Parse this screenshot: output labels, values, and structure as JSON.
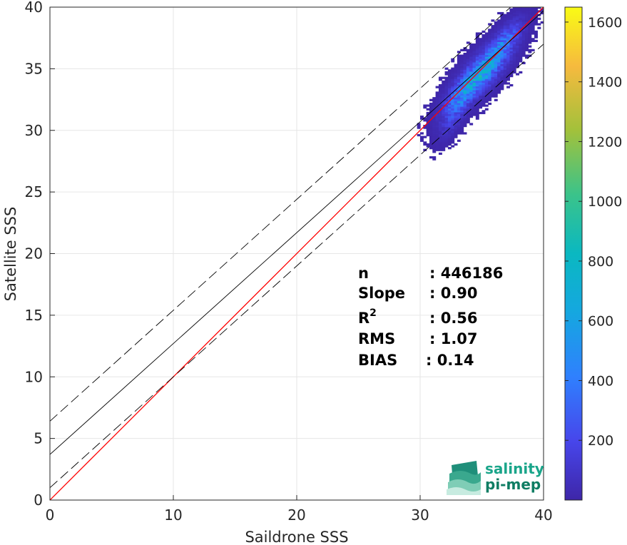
{
  "chart_data": {
    "type": "heatmap",
    "xlabel": "Saildrone SSS",
    "ylabel": "Satellite SSS",
    "xlim": [
      0,
      40
    ],
    "ylim": [
      0,
      40
    ],
    "xticks": [
      "0",
      "10",
      "20",
      "30",
      "40"
    ],
    "yticks": [
      "0",
      "5",
      "10",
      "15",
      "20",
      "25",
      "30",
      "35",
      "40"
    ],
    "grid": true,
    "colorbar": {
      "range": [
        0,
        1650
      ],
      "ticks": [
        "200",
        "400",
        "600",
        "800",
        "1000",
        "1200",
        "1400",
        "1600"
      ],
      "colormap": "parula"
    },
    "lines": [
      {
        "kind": "identity",
        "color": "#ff0000",
        "slope": 1.0,
        "intercept": 0.0
      },
      {
        "kind": "regression",
        "color": "#000000",
        "slope": 0.9,
        "intercept": 3.7
      },
      {
        "kind": "regression-upper",
        "color": "#000000",
        "dash": true,
        "slope": 0.9,
        "intercept": 6.4
      },
      {
        "kind": "regression-lower",
        "color": "#000000",
        "dash": true,
        "slope": 0.9,
        "intercept": 1.0
      }
    ],
    "density_clusters": [
      {
        "x": 35.0,
        "y": 34.8,
        "peak": 600
      },
      {
        "x": 33.2,
        "y": 32.8,
        "peak": 350
      },
      {
        "x": 36.8,
        "y": 37.2,
        "peak": 300
      },
      {
        "x": 32.5,
        "y": 30.8,
        "peak": 120
      }
    ],
    "stats": [
      {
        "label": "n",
        "value": ": 446186"
      },
      {
        "label": "Slope",
        "value": ": 0.90"
      },
      {
        "label": "R",
        "sup": "2",
        "value": ": 0.56"
      },
      {
        "label": "RMS",
        "value": ": 1.07"
      },
      {
        "label": "BIAS",
        "value": ": 0.14"
      }
    ]
  },
  "logo": {
    "line1": "salinity",
    "line2": "pi-mep"
  }
}
